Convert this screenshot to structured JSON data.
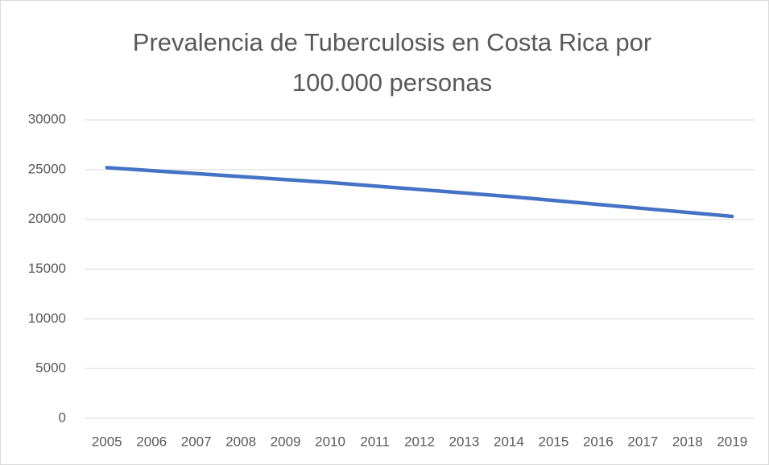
{
  "chart_data": {
    "type": "line",
    "title": "Prevalencia de Tuberculosis en Costa Rica por 100.000 personas",
    "categories": [
      "2005",
      "2006",
      "2007",
      "2008",
      "2009",
      "2010",
      "2011",
      "2012",
      "2013",
      "2014",
      "2015",
      "2016",
      "2017",
      "2018",
      "2019"
    ],
    "values": [
      25200,
      24900,
      24600,
      24300,
      24000,
      23700,
      23350,
      23000,
      22650,
      22300,
      21900,
      21500,
      21100,
      20700,
      20300
    ],
    "color": "#4472c4",
    "ylim": [
      0,
      30000
    ],
    "yticks": [
      0,
      5000,
      10000,
      15000,
      20000,
      25000,
      30000
    ],
    "grid": true
  }
}
